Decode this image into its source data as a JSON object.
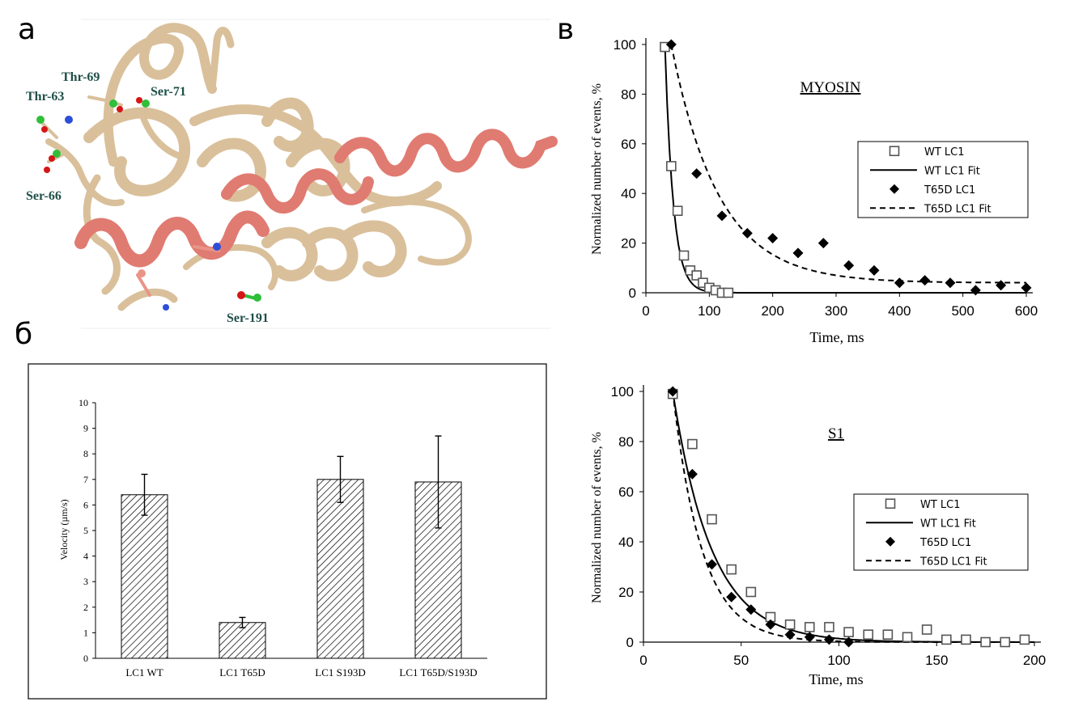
{
  "panel_labels": {
    "a": "а",
    "b": "б",
    "c": "в"
  },
  "structure": {
    "labels": [
      "Thr-69",
      "Ser-71",
      "Thr-63",
      "Ser-66",
      "Ser-191"
    ],
    "colors": {
      "ribbon": "#d9c09b",
      "helix_highlight": "#e07b72",
      "atom_green": "#2fbf3a",
      "atom_red": "#d51616",
      "atom_blue": "#2d4fd8",
      "atom_salmon": "#ea9488",
      "label_text": "#1f4f48"
    }
  },
  "chart_data": [
    {
      "id": "myosin",
      "type": "scatter",
      "title": "MYOSIN",
      "xlabel": "Time, ms",
      "ylabel": "Normalized number of events, %",
      "xlim": [
        0,
        600
      ],
      "ylim": [
        0,
        100
      ],
      "xticks": [
        "0",
        "100",
        "200",
        "300",
        "400",
        "500",
        "600"
      ],
      "yticks": [
        "0",
        "20",
        "40",
        "60",
        "80",
        "100"
      ],
      "legend": "right",
      "legend_entries": [
        "WT LC1",
        "WT LC1 Fit",
        "T65D LC1",
        "T65D LC1 Fit"
      ],
      "series": [
        {
          "name": "WT LC1",
          "kind": "points",
          "marker": "square-open",
          "x": [
            30,
            40,
            50,
            60,
            70,
            80,
            90,
            100,
            110,
            120,
            130
          ],
          "y": [
            99,
            51,
            33,
            15,
            9,
            7,
            4,
            2,
            1,
            0,
            0
          ]
        },
        {
          "name": "WT LC1 Fit",
          "kind": "line",
          "dash": "solid",
          "x0": 30,
          "y0": 100,
          "tau": 13,
          "plateau": 0
        },
        {
          "name": "T65D LC1",
          "kind": "points",
          "marker": "diamond-filled",
          "x": [
            40,
            80,
            120,
            160,
            200,
            240,
            280,
            320,
            360,
            400,
            440,
            480,
            520,
            560,
            600
          ],
          "y": [
            100,
            48,
            31,
            24,
            22,
            16,
            20,
            11,
            9,
            4,
            5,
            4,
            1,
            3,
            2
          ]
        },
        {
          "name": "T65D LC1 Fit",
          "kind": "line",
          "dash": "dashed",
          "x0": 40,
          "y0": 100,
          "tau": 75,
          "plateau": 4
        }
      ]
    },
    {
      "id": "s1",
      "type": "scatter",
      "title": "S1",
      "xlabel": "Time, ms",
      "ylabel": "Normalized number of events, %",
      "xlim": [
        0,
        200
      ],
      "ylim": [
        0,
        100
      ],
      "xticks": [
        "0",
        "50",
        "100",
        "150",
        "200"
      ],
      "yticks": [
        "0",
        "20",
        "40",
        "60",
        "80",
        "100"
      ],
      "legend": "right",
      "legend_entries": [
        "WT LC1",
        "WT LC1 Fit",
        "T65D LC1",
        "T65D LC1 Fit"
      ],
      "series": [
        {
          "name": "WT LC1",
          "kind": "points",
          "marker": "square-open",
          "x": [
            15,
            25,
            35,
            45,
            55,
            65,
            75,
            85,
            95,
            105,
            115,
            125,
            135,
            145,
            155,
            165,
            175,
            185,
            195
          ],
          "y": [
            99,
            79,
            49,
            29,
            20,
            10,
            7,
            6,
            6,
            4,
            3,
            3,
            2,
            5,
            1,
            1,
            0,
            0,
            1
          ]
        },
        {
          "name": "WT LC1 Fit",
          "kind": "line",
          "dash": "solid",
          "x0": 15,
          "y0": 100,
          "tau": 20,
          "plateau": 0
        },
        {
          "name": "T65D LC1",
          "kind": "points",
          "marker": "diamond-filled",
          "x": [
            15,
            25,
            35,
            45,
            55,
            65,
            75,
            85,
            95,
            105
          ],
          "y": [
            100,
            67,
            31,
            18,
            13,
            7,
            3,
            2,
            1,
            0
          ]
        },
        {
          "name": "T65D LC1 Fit",
          "kind": "line",
          "dash": "dashed",
          "x0": 15,
          "y0": 100,
          "tau": 15,
          "plateau": 0
        }
      ]
    },
    {
      "id": "velocity",
      "type": "bar",
      "ylabel": "Velocity (µm/s)",
      "ylim": [
        0,
        10
      ],
      "yticks": [
        "0",
        "1",
        "2",
        "3",
        "4",
        "5",
        "6",
        "7",
        "8",
        "9",
        "10"
      ],
      "categories": [
        "LC1 WT",
        "LC1 T65D",
        "LC1 S193D",
        "LC1 T65D/S193D"
      ],
      "values": [
        6.4,
        1.4,
        7.0,
        6.9
      ],
      "errors": [
        0.8,
        0.2,
        0.9,
        1.8
      ],
      "fill": "hatched"
    }
  ]
}
